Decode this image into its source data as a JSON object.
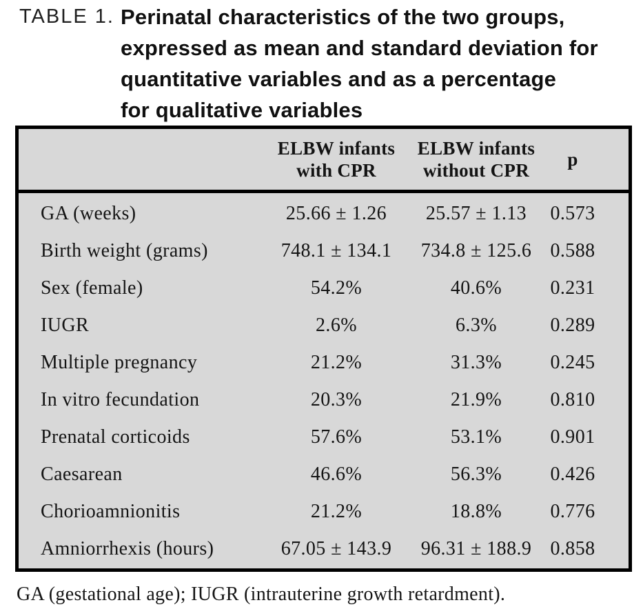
{
  "title": {
    "label": "TABLE 1.",
    "text": "Perinatal characteristics of the two groups,\nexpressed as mean and standard deviation for\nquantitative variables and as a percentage\nfor qualitative variables"
  },
  "table": {
    "columns": [
      "",
      "ELBW infants\nwith CPR",
      "ELBW infants\nwithout CPR",
      "p"
    ],
    "rows": [
      {
        "label": "GA (weeks)",
        "with_cpr": "25.66 ± 1.26",
        "without_cpr": "25.57 ± 1.13",
        "p": "0.573"
      },
      {
        "label": "Birth weight (grams)",
        "with_cpr": "748.1 ± 134.1",
        "without_cpr": "734.8 ± 125.6",
        "p": "0.588"
      },
      {
        "label": "Sex (female)",
        "with_cpr": "54.2%",
        "without_cpr": "40.6%",
        "p": "0.231"
      },
      {
        "label": "IUGR",
        "with_cpr": "2.6%",
        "without_cpr": "6.3%",
        "p": "0.289"
      },
      {
        "label": "Multiple pregnancy",
        "with_cpr": "21.2%",
        "without_cpr": "31.3%",
        "p": "0.245"
      },
      {
        "label": "In vitro fecundation",
        "with_cpr": "20.3%",
        "without_cpr": "21.9%",
        "p": "0.810"
      },
      {
        "label": "Prenatal corticoids",
        "with_cpr": "57.6%",
        "without_cpr": "53.1%",
        "p": "0.901"
      },
      {
        "label": "Caesarean",
        "with_cpr": "46.6%",
        "without_cpr": "56.3%",
        "p": "0.426"
      },
      {
        "label": "Chorioamnionitis",
        "with_cpr": "21.2%",
        "without_cpr": "18.8%",
        "p": "0.776"
      },
      {
        "label": "Amniorrhexis (hours)",
        "with_cpr": "67.05 ± 143.9",
        "without_cpr": "96.31 ± 188.9",
        "p": "0.858"
      }
    ]
  },
  "footnote": "GA (gestational age); IUGR (intrauterine growth retardment).",
  "colors": {
    "table_background": "#d8d8d8",
    "border": "#000000",
    "text": "#141414"
  }
}
